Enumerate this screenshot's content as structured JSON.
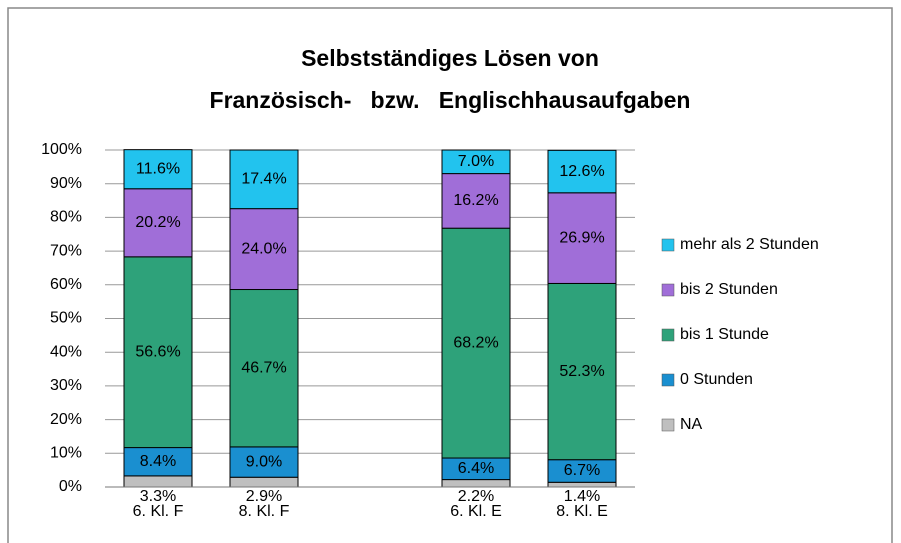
{
  "chart_data": {
    "type": "stacked_bar",
    "title": [
      "Selbstständiges Lösen von",
      "Französisch-   bzw.   Englischhausaufgaben"
    ],
    "categories": [
      "6. Kl. F",
      "8. Kl. F",
      null,
      "6. Kl. E",
      "8. Kl. E"
    ],
    "ylim": [
      0,
      100
    ],
    "yticks": [
      {
        "value": 0,
        "label": "0%"
      },
      {
        "value": 10,
        "label": "10%"
      },
      {
        "value": 20,
        "label": "20%"
      },
      {
        "value": 30,
        "label": "30%"
      },
      {
        "value": 40,
        "label": "40%"
      },
      {
        "value": 50,
        "label": "50%"
      },
      {
        "value": 60,
        "label": "60%"
      },
      {
        "value": 70,
        "label": "70%"
      },
      {
        "value": 80,
        "label": "80%"
      },
      {
        "value": 90,
        "label": "90%"
      },
      {
        "value": 100,
        "label": "100%"
      }
    ],
    "grid": true,
    "legend": "right",
    "series": [
      {
        "name": "NA",
        "color": "#bfbfbf",
        "values": [
          3.3,
          2.9,
          null,
          2.2,
          1.4
        ],
        "value_labels": [
          "3.3%",
          "2.9%",
          null,
          "2.2%",
          "1.4%"
        ]
      },
      {
        "name": "0 Stunden",
        "color": "#1a8fd0",
        "values": [
          8.4,
          9.0,
          null,
          6.4,
          6.7
        ],
        "value_labels": [
          "8.4%",
          "9.0%",
          null,
          "6.4%",
          "6.7%"
        ]
      },
      {
        "name": "bis 1 Stunde",
        "color": "#2ea27a",
        "values": [
          56.6,
          46.7,
          null,
          68.2,
          52.3
        ],
        "value_labels": [
          "56.6%",
          "46.7%",
          null,
          "68.2%",
          "52.3%"
        ]
      },
      {
        "name": "bis 2 Stunden",
        "color": "#a06ed8",
        "values": [
          20.2,
          24.0,
          null,
          16.2,
          26.9
        ],
        "value_labels": [
          "20.2%",
          "24.0%",
          null,
          "16.2%",
          "26.9%"
        ]
      },
      {
        "name": "mehr als 2 Stunden",
        "color": "#22c3ee",
        "values": [
          11.6,
          17.4,
          null,
          7.0,
          12.6
        ],
        "value_labels": [
          "11.6%",
          "17.4%",
          null,
          "7.0%",
          "12.6%"
        ]
      }
    ]
  }
}
